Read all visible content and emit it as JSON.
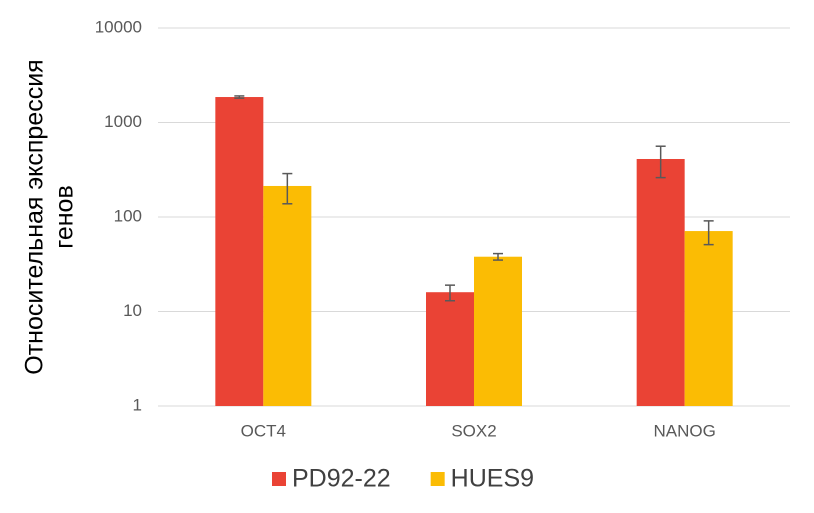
{
  "chart_data": {
    "type": "bar",
    "log_scale": true,
    "grid": true,
    "y_label": [
      "Относительная экспрессия",
      "генов"
    ],
    "categories": [
      "OCT4",
      "SOX2",
      "NANOG"
    ],
    "series": [
      {
        "name": "PD92-22",
        "color": "#ea4335",
        "values": [
          1860,
          16,
          411
        ],
        "errors": [
          50,
          3,
          150
        ]
      },
      {
        "name": "HUES9",
        "color": "#fbbc04",
        "values": [
          213,
          38,
          71
        ],
        "errors": [
          75,
          3,
          20
        ]
      }
    ],
    "ylim": [
      1,
      10000
    ],
    "yticks": [
      1,
      10,
      100,
      1000,
      10000
    ],
    "legend": "bottom"
  }
}
